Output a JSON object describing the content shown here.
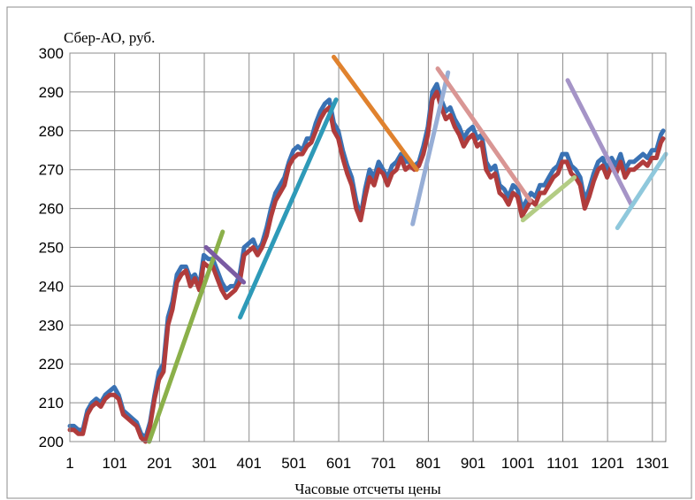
{
  "chart_data": {
    "type": "line",
    "ylabel": "Сбер-АО, руб.",
    "xlabel": "Часовые отсчеты цены",
    "xticks": [
      "1",
      "101",
      "201",
      "301",
      "401",
      "501",
      "601",
      "701",
      "801",
      "901",
      "1001",
      "1101",
      "1201",
      "1301"
    ],
    "yticks": [
      "200",
      "210",
      "220",
      "230",
      "240",
      "250",
      "260",
      "270",
      "280",
      "290",
      "300"
    ],
    "xlim": [
      1,
      1331
    ],
    "ylim": [
      200,
      300
    ],
    "grid": true,
    "legend": "none",
    "series": [
      {
        "color": "#3a72b4",
        "points": [
          [
            1,
            204
          ],
          [
            10,
            204
          ],
          [
            20,
            203
          ],
          [
            30,
            203
          ],
          [
            40,
            208
          ],
          [
            50,
            210
          ],
          [
            60,
            211
          ],
          [
            70,
            210
          ],
          [
            80,
            212
          ],
          [
            90,
            213
          ],
          [
            100,
            214
          ],
          [
            110,
            212
          ],
          [
            120,
            208
          ],
          [
            130,
            207
          ],
          [
            140,
            206
          ],
          [
            150,
            205
          ],
          [
            160,
            202
          ],
          [
            170,
            201
          ],
          [
            180,
            205
          ],
          [
            190,
            212
          ],
          [
            200,
            218
          ],
          [
            210,
            220
          ],
          [
            220,
            232
          ],
          [
            230,
            236
          ],
          [
            240,
            243
          ],
          [
            250,
            245
          ],
          [
            260,
            245
          ],
          [
            270,
            242
          ],
          [
            280,
            243
          ],
          [
            290,
            240
          ],
          [
            300,
            248
          ],
          [
            310,
            247
          ],
          [
            320,
            247
          ],
          [
            330,
            244
          ],
          [
            340,
            241
          ],
          [
            350,
            239
          ],
          [
            360,
            240
          ],
          [
            370,
            240
          ],
          [
            380,
            243
          ],
          [
            390,
            250
          ],
          [
            400,
            251
          ],
          [
            410,
            252
          ],
          [
            420,
            249
          ],
          [
            430,
            251
          ],
          [
            440,
            255
          ],
          [
            450,
            260
          ],
          [
            460,
            264
          ],
          [
            470,
            266
          ],
          [
            480,
            268
          ],
          [
            490,
            272
          ],
          [
            500,
            275
          ],
          [
            510,
            276
          ],
          [
            520,
            275
          ],
          [
            530,
            278
          ],
          [
            540,
            278
          ],
          [
            550,
            282
          ],
          [
            560,
            285
          ],
          [
            570,
            287
          ],
          [
            580,
            288
          ],
          [
            590,
            282
          ],
          [
            600,
            280
          ],
          [
            610,
            275
          ],
          [
            620,
            271
          ],
          [
            630,
            268
          ],
          [
            640,
            262
          ],
          [
            650,
            258
          ],
          [
            660,
            265
          ],
          [
            670,
            270
          ],
          [
            680,
            268
          ],
          [
            690,
            272
          ],
          [
            700,
            270
          ],
          [
            710,
            268
          ],
          [
            720,
            271
          ],
          [
            730,
            272
          ],
          [
            740,
            274
          ],
          [
            750,
            272
          ],
          [
            760,
            272
          ],
          [
            770,
            271
          ],
          [
            780,
            272
          ],
          [
            790,
            276
          ],
          [
            800,
            281
          ],
          [
            810,
            290
          ],
          [
            820,
            292
          ],
          [
            830,
            288
          ],
          [
            840,
            285
          ],
          [
            850,
            286
          ],
          [
            860,
            283
          ],
          [
            870,
            281
          ],
          [
            880,
            278
          ],
          [
            890,
            280
          ],
          [
            900,
            281
          ],
          [
            910,
            278
          ],
          [
            920,
            279
          ],
          [
            930,
            272
          ],
          [
            940,
            270
          ],
          [
            950,
            271
          ],
          [
            960,
            266
          ],
          [
            970,
            265
          ],
          [
            980,
            263
          ],
          [
            990,
            266
          ],
          [
            1000,
            265
          ],
          [
            1010,
            260
          ],
          [
            1020,
            262
          ],
          [
            1030,
            264
          ],
          [
            1040,
            263
          ],
          [
            1050,
            266
          ],
          [
            1060,
            266
          ],
          [
            1070,
            268
          ],
          [
            1080,
            270
          ],
          [
            1090,
            271
          ],
          [
            1100,
            274
          ],
          [
            1110,
            274
          ],
          [
            1120,
            271
          ],
          [
            1130,
            270
          ],
          [
            1140,
            268
          ],
          [
            1150,
            262
          ],
          [
            1160,
            265
          ],
          [
            1170,
            269
          ],
          [
            1180,
            272
          ],
          [
            1190,
            273
          ],
          [
            1200,
            270
          ],
          [
            1210,
            273
          ],
          [
            1220,
            271
          ],
          [
            1230,
            274
          ],
          [
            1240,
            270
          ],
          [
            1250,
            272
          ],
          [
            1260,
            272
          ],
          [
            1270,
            273
          ],
          [
            1280,
            274
          ],
          [
            1290,
            273
          ],
          [
            1300,
            275
          ],
          [
            1310,
            275
          ],
          [
            1320,
            279
          ],
          [
            1325,
            280
          ]
        ]
      },
      {
        "color": "#b03c3c",
        "points": [
          [
            1,
            203
          ],
          [
            10,
            203
          ],
          [
            20,
            202
          ],
          [
            30,
            202
          ],
          [
            40,
            207
          ],
          [
            50,
            209
          ],
          [
            60,
            210
          ],
          [
            70,
            209
          ],
          [
            80,
            211
          ],
          [
            90,
            212
          ],
          [
            100,
            212
          ],
          [
            110,
            211
          ],
          [
            120,
            207
          ],
          [
            130,
            206
          ],
          [
            140,
            205
          ],
          [
            150,
            204
          ],
          [
            160,
            201
          ],
          [
            170,
            200
          ],
          [
            180,
            204
          ],
          [
            190,
            211
          ],
          [
            200,
            216
          ],
          [
            210,
            218
          ],
          [
            220,
            230
          ],
          [
            230,
            234
          ],
          [
            240,
            241
          ],
          [
            250,
            243
          ],
          [
            260,
            244
          ],
          [
            270,
            240
          ],
          [
            280,
            242
          ],
          [
            290,
            239
          ],
          [
            300,
            246
          ],
          [
            310,
            245
          ],
          [
            320,
            245
          ],
          [
            330,
            242
          ],
          [
            340,
            239
          ],
          [
            350,
            237
          ],
          [
            360,
            238
          ],
          [
            370,
            239
          ],
          [
            380,
            241
          ],
          [
            390,
            248
          ],
          [
            400,
            249
          ],
          [
            410,
            250
          ],
          [
            420,
            248
          ],
          [
            430,
            250
          ],
          [
            440,
            253
          ],
          [
            450,
            258
          ],
          [
            460,
            262
          ],
          [
            470,
            264
          ],
          [
            480,
            266
          ],
          [
            490,
            271
          ],
          [
            500,
            273
          ],
          [
            510,
            274
          ],
          [
            520,
            274
          ],
          [
            530,
            276
          ],
          [
            540,
            277
          ],
          [
            550,
            280
          ],
          [
            560,
            283
          ],
          [
            570,
            285
          ],
          [
            580,
            286
          ],
          [
            590,
            280
          ],
          [
            600,
            278
          ],
          [
            610,
            273
          ],
          [
            620,
            269
          ],
          [
            630,
            266
          ],
          [
            640,
            260
          ],
          [
            650,
            257
          ],
          [
            660,
            263
          ],
          [
            670,
            268
          ],
          [
            680,
            266
          ],
          [
            690,
            270
          ],
          [
            700,
            269
          ],
          [
            710,
            266
          ],
          [
            720,
            269
          ],
          [
            730,
            270
          ],
          [
            740,
            273
          ],
          [
            750,
            270
          ],
          [
            760,
            271
          ],
          [
            770,
            270
          ],
          [
            780,
            271
          ],
          [
            790,
            274
          ],
          [
            800,
            279
          ],
          [
            810,
            288
          ],
          [
            820,
            290
          ],
          [
            830,
            286
          ],
          [
            840,
            283
          ],
          [
            850,
            284
          ],
          [
            860,
            281
          ],
          [
            870,
            279
          ],
          [
            880,
            276
          ],
          [
            890,
            278
          ],
          [
            900,
            279
          ],
          [
            910,
            276
          ],
          [
            920,
            277
          ],
          [
            930,
            270
          ],
          [
            940,
            268
          ],
          [
            950,
            269
          ],
          [
            960,
            264
          ],
          [
            970,
            263
          ],
          [
            980,
            261
          ],
          [
            990,
            264
          ],
          [
            1000,
            263
          ],
          [
            1010,
            258
          ],
          [
            1020,
            260
          ],
          [
            1030,
            262
          ],
          [
            1040,
            261
          ],
          [
            1050,
            264
          ],
          [
            1060,
            264
          ],
          [
            1070,
            266
          ],
          [
            1080,
            268
          ],
          [
            1090,
            269
          ],
          [
            1100,
            272
          ],
          [
            1110,
            272
          ],
          [
            1120,
            269
          ],
          [
            1130,
            268
          ],
          [
            1140,
            266
          ],
          [
            1150,
            260
          ],
          [
            1160,
            263
          ],
          [
            1170,
            267
          ],
          [
            1180,
            270
          ],
          [
            1190,
            271
          ],
          [
            1200,
            268
          ],
          [
            1210,
            271
          ],
          [
            1220,
            269
          ],
          [
            1230,
            272
          ],
          [
            1240,
            268
          ],
          [
            1250,
            270
          ],
          [
            1260,
            270
          ],
          [
            1270,
            271
          ],
          [
            1280,
            272
          ],
          [
            1290,
            271
          ],
          [
            1300,
            273
          ],
          [
            1310,
            273
          ],
          [
            1320,
            277
          ],
          [
            1325,
            278
          ]
        ]
      }
    ],
    "trendlines": [
      {
        "color": "#8bb04a",
        "from": [
          178,
          200
        ],
        "to": [
          342,
          254
        ]
      },
      {
        "color": "#7a5ba3",
        "from": [
          305,
          250
        ],
        "to": [
          389,
          241
        ]
      },
      {
        "color": "#2e9ab8",
        "from": [
          381,
          232
        ],
        "to": [
          595,
          288
        ]
      },
      {
        "color": "#e0822e",
        "from": [
          590,
          299
        ],
        "to": [
          775,
          270
        ]
      },
      {
        "color": "#97aed6",
        "from": [
          766,
          256
        ],
        "to": [
          845,
          295
        ]
      },
      {
        "color": "#d99694",
        "from": [
          822,
          296
        ],
        "to": [
          1028,
          262
        ]
      },
      {
        "color": "#b3cc84",
        "from": [
          1012,
          257
        ],
        "to": [
          1127,
          268
        ]
      },
      {
        "color": "#a594c7",
        "from": [
          1112,
          293
        ],
        "to": [
          1254,
          261
        ]
      },
      {
        "color": "#8fc8dc",
        "from": [
          1223,
          255
        ],
        "to": [
          1331,
          274
        ]
      }
    ]
  }
}
